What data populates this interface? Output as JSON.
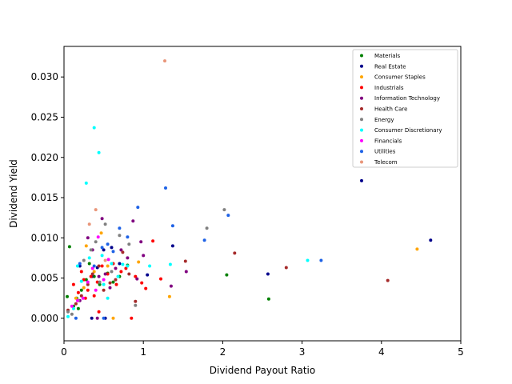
{
  "chart_data": {
    "type": "scatter",
    "xlabel": "Dividend Payout Ratio",
    "ylabel": "Dividend Yield",
    "xlim": [
      0,
      5
    ],
    "ylim": [
      -0.0028,
      0.0338
    ],
    "xticks": [
      0,
      1,
      2,
      3,
      4,
      5
    ],
    "yticks": [
      0.0,
      0.005,
      0.01,
      0.015,
      0.02,
      0.025,
      0.03
    ],
    "ytick_labels": [
      "0.000",
      "0.005",
      "0.010",
      "0.015",
      "0.020",
      "0.025",
      "0.030"
    ],
    "grid": false,
    "legend_position": "top-right",
    "series": [
      {
        "name": "Materials",
        "color": "#008000",
        "points": [
          [
            0.07,
            0.0089
          ],
          [
            0.12,
            0.0015
          ],
          [
            0.16,
            0.0025
          ],
          [
            0.22,
            0.0035
          ],
          [
            0.28,
            0.0048
          ],
          [
            0.32,
            0.0068
          ],
          [
            0.38,
            0.0052
          ],
          [
            0.45,
            0.0042
          ],
          [
            0.55,
            0.0056
          ],
          [
            0.62,
            0.0045
          ],
          [
            0.7,
            0.0052
          ],
          [
            0.8,
            0.0066
          ],
          [
            0.04,
            0.0027
          ],
          [
            2.05,
            0.0054
          ],
          [
            2.58,
            0.0024
          ],
          [
            0.18,
            0.0012
          ]
        ]
      },
      {
        "name": "Real Estate",
        "color": "#00008b",
        "points": [
          [
            0.2,
            0.0065
          ],
          [
            0.35,
            0.0052
          ],
          [
            0.42,
            0.0063
          ],
          [
            0.5,
            0.0085
          ],
          [
            0.6,
            0.0088
          ],
          [
            0.7,
            0.0068
          ],
          [
            1.05,
            0.0054
          ],
          [
            1.37,
            0.009
          ],
          [
            2.57,
            0.0055
          ],
          [
            3.75,
            0.0171
          ],
          [
            4.62,
            0.0097
          ],
          [
            0.35,
            0.0
          ],
          [
            0.52,
            0.0
          ]
        ]
      },
      {
        "name": "Consumer Staples",
        "color": "#ffa500",
        "points": [
          [
            0.15,
            0.0025
          ],
          [
            0.28,
            0.009
          ],
          [
            0.38,
            0.0058
          ],
          [
            0.47,
            0.0106
          ],
          [
            0.55,
            0.0065
          ],
          [
            0.62,
            0.0
          ],
          [
            0.94,
            0.007
          ],
          [
            1.33,
            0.0027
          ],
          [
            4.45,
            0.0086
          ],
          [
            0.25,
            0.0038
          ]
        ]
      },
      {
        "name": "Industrials",
        "color": "#ff0000",
        "points": [
          [
            0.12,
            0.0042
          ],
          [
            0.18,
            0.0032
          ],
          [
            0.22,
            0.0058
          ],
          [
            0.25,
            0.0048
          ],
          [
            0.3,
            0.0035
          ],
          [
            0.34,
            0.0052
          ],
          [
            0.38,
            0.0028
          ],
          [
            0.42,
            0.0045
          ],
          [
            0.48,
            0.0065
          ],
          [
            0.55,
            0.0055
          ],
          [
            0.62,
            0.0068
          ],
          [
            0.66,
            0.0042
          ],
          [
            0.72,
            0.0058
          ],
          [
            0.78,
            0.0062
          ],
          [
            0.85,
            0.0
          ],
          [
            0.9,
            0.0052
          ],
          [
            0.98,
            0.0044
          ],
          [
            1.03,
            0.0037
          ],
          [
            1.12,
            0.0096
          ],
          [
            1.22,
            0.0049
          ],
          [
            0.27,
            0.0025
          ],
          [
            0.44,
            0.0008
          ]
        ]
      },
      {
        "name": "Information Technology",
        "color": "#800080",
        "points": [
          [
            0.2,
            0.0022
          ],
          [
            0.3,
            0.01
          ],
          [
            0.36,
            0.0085
          ],
          [
            0.42,
            0.0
          ],
          [
            0.48,
            0.0124
          ],
          [
            0.52,
            0.0055
          ],
          [
            0.58,
            0.0038
          ],
          [
            0.65,
            0.0062
          ],
          [
            0.72,
            0.0085
          ],
          [
            0.8,
            0.0075
          ],
          [
            0.87,
            0.0121
          ],
          [
            0.92,
            0.0049
          ],
          [
            0.97,
            0.0095
          ],
          [
            1.0,
            0.0078
          ],
          [
            1.35,
            0.004
          ],
          [
            1.54,
            0.0058
          ],
          [
            0.44,
            0.0052
          ]
        ]
      },
      {
        "name": "Health Care",
        "color": "#a52a2a",
        "points": [
          [
            0.05,
            0.001
          ],
          [
            0.15,
            0.0018
          ],
          [
            0.22,
            0.0028
          ],
          [
            0.3,
            0.0042
          ],
          [
            0.36,
            0.0055
          ],
          [
            0.44,
            0.0065
          ],
          [
            0.5,
            0.0035
          ],
          [
            0.58,
            0.0044
          ],
          [
            0.65,
            0.0048
          ],
          [
            0.74,
            0.0082
          ],
          [
            0.82,
            0.0055
          ],
          [
            0.9,
            0.0021
          ],
          [
            1.53,
            0.0071
          ],
          [
            2.15,
            0.0081
          ],
          [
            2.8,
            0.0063
          ],
          [
            4.08,
            0.0047
          ]
        ]
      },
      {
        "name": "Energy",
        "color": "#808080",
        "points": [
          [
            0.05,
            0.0008
          ],
          [
            0.1,
            0.0005
          ],
          [
            0.18,
            0.0022
          ],
          [
            0.25,
            0.0072
          ],
          [
            0.34,
            0.0085
          ],
          [
            0.4,
            0.0095
          ],
          [
            0.52,
            0.0117
          ],
          [
            0.6,
            0.0058
          ],
          [
            0.7,
            0.0103
          ],
          [
            0.82,
            0.0092
          ],
          [
            0.9,
            0.0016
          ],
          [
            1.8,
            0.0112
          ],
          [
            2.02,
            0.0135
          ],
          [
            0.45,
            0.0045
          ]
        ]
      },
      {
        "name": "Consumer Discretionary",
        "color": "#00ffff",
        "points": [
          [
            0.05,
            0.0002
          ],
          [
            0.12,
            0.0012
          ],
          [
            0.17,
            0.0065
          ],
          [
            0.22,
            0.0046
          ],
          [
            0.28,
            0.0168
          ],
          [
            0.32,
            0.0075
          ],
          [
            0.38,
            0.0237
          ],
          [
            0.44,
            0.0206
          ],
          [
            0.5,
            0.0042
          ],
          [
            0.55,
            0.0025
          ],
          [
            0.6,
            0.0068
          ],
          [
            0.68,
            0.0052
          ],
          [
            0.74,
            0.0067
          ],
          [
            0.8,
            0.0065
          ],
          [
            1.08,
            0.0065
          ],
          [
            1.34,
            0.0067
          ],
          [
            3.07,
            0.0072
          ],
          [
            0.48,
            0.0078
          ]
        ]
      },
      {
        "name": "Financials",
        "color": "#ff00ff",
        "points": [
          [
            0.1,
            0.0015
          ],
          [
            0.17,
            0.0022
          ],
          [
            0.24,
            0.0025
          ],
          [
            0.3,
            0.0045
          ],
          [
            0.36,
            0.0062
          ],
          [
            0.43,
            0.0101
          ],
          [
            0.5,
            0.0048
          ],
          [
            0.56,
            0.0073
          ],
          [
            0.4,
            0.0035
          ]
        ]
      },
      {
        "name": "Utilities",
        "color": "#1e62e6",
        "points": [
          [
            0.15,
            0.0
          ],
          [
            0.2,
            0.0068
          ],
          [
            0.38,
            0.0065
          ],
          [
            0.48,
            0.0088
          ],
          [
            0.55,
            0.0092
          ],
          [
            0.62,
            0.0083
          ],
          [
            0.7,
            0.0112
          ],
          [
            0.8,
            0.0101
          ],
          [
            0.93,
            0.0138
          ],
          [
            1.28,
            0.0162
          ],
          [
            1.37,
            0.0115
          ],
          [
            1.77,
            0.0097
          ],
          [
            2.07,
            0.0128
          ],
          [
            3.24,
            0.0072
          ],
          [
            0.5,
            0.0
          ]
        ]
      },
      {
        "name": "Telecom",
        "color": "#e9967a",
        "points": [
          [
            0.32,
            0.0117
          ],
          [
            0.4,
            0.0135
          ],
          [
            0.52,
            0.0072
          ],
          [
            1.27,
            0.032
          ]
        ]
      }
    ]
  }
}
